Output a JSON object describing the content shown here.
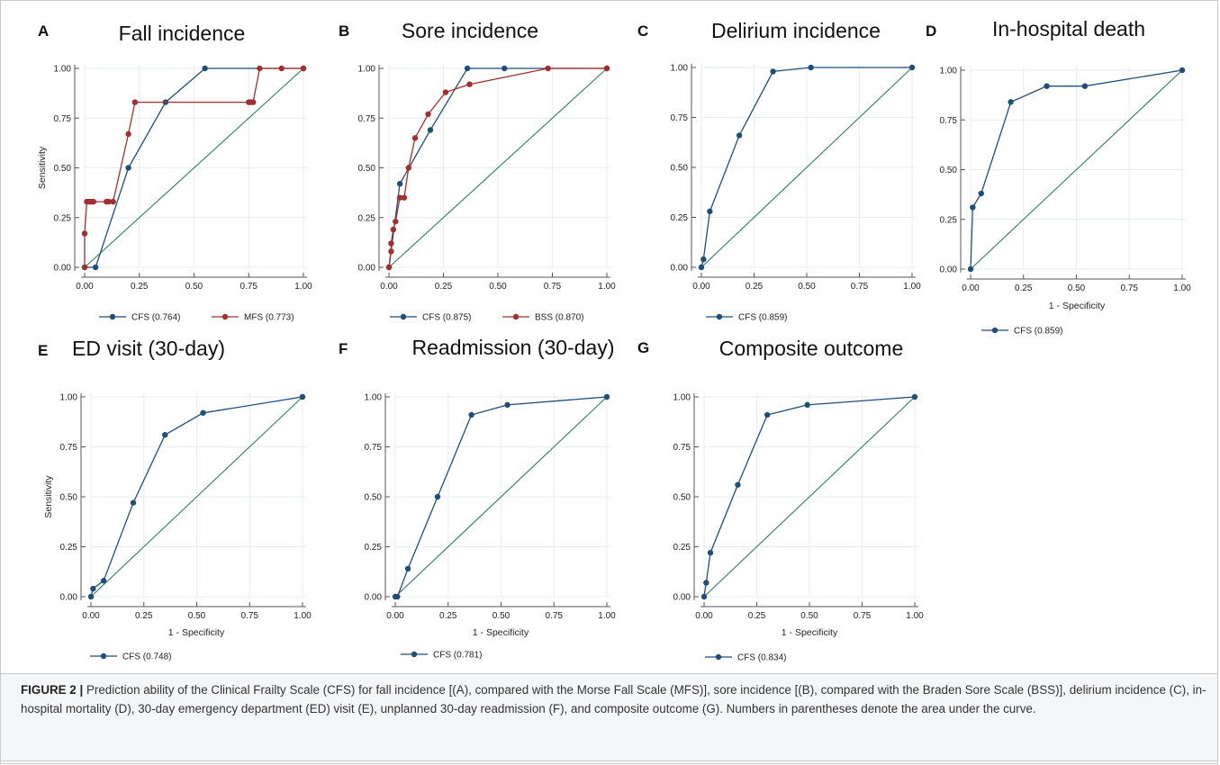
{
  "caption": {
    "heading": "FIGURE 2 |",
    "text": "Prediction ability of the Clinical Frailty Scale (CFS) for fall incidence [(A), compared with the Morse Fall Scale (MFS)], sore incidence [(B), compared with the Braden Sore Scale (BSS)], delirium incidence (C), in-hospital mortality (D), 30-day emergency department (ED) visit (E), unplanned 30-day readmission (F), and composite outcome (G). Numbers in parentheses denote the area under the curve."
  },
  "colors": {
    "cfs": "#1f4e79",
    "comparator": "#a32e2e",
    "reference": "#2e7d5b"
  },
  "chart_data": [
    {
      "type": "line",
      "letter": "A",
      "title": "Fall incidence",
      "xlabel": "",
      "ylabel": "Sensitivity",
      "xlim": [
        0,
        1
      ],
      "ylim": [
        0,
        1
      ],
      "xticks": [
        "0.00",
        "0.25",
        "0.50",
        "0.75",
        "1.00"
      ],
      "yticks": [
        "0.00",
        "0.25",
        "0.50",
        "0.75",
        "1.00"
      ],
      "grid": true,
      "legend_position": "bottom",
      "series": [
        {
          "name": "CFS (0.764)",
          "color": "#1f4e79",
          "x": [
            0,
            0.05,
            0.2,
            0.37,
            0.55,
            1.0
          ],
          "y": [
            0,
            0,
            0.5,
            0.83,
            1.0,
            1.0
          ]
        },
        {
          "name": "MFS (0.773)",
          "color": "#a32e2e",
          "x": [
            0,
            0,
            0.01,
            0.02,
            0.03,
            0.04,
            0.1,
            0.11,
            0.13,
            0.2,
            0.23,
            0.75,
            0.76,
            0.77,
            0.8,
            0.9,
            1.0
          ],
          "y": [
            0,
            0.17,
            0.33,
            0.33,
            0.33,
            0.33,
            0.33,
            0.33,
            0.33,
            0.67,
            0.83,
            0.83,
            0.83,
            0.83,
            1.0,
            1.0,
            1.0
          ]
        }
      ]
    },
    {
      "type": "line",
      "letter": "B",
      "title": "Sore incidence",
      "xlabel": "",
      "ylabel": "",
      "xlim": [
        0,
        1
      ],
      "ylim": [
        0,
        1
      ],
      "xticks": [
        "0.00",
        "0.25",
        "0.50",
        "0.75",
        "1.00"
      ],
      "yticks": [
        "0.00",
        "0.25",
        "0.50",
        "0.75",
        "1.00"
      ],
      "grid": true,
      "legend_position": "bottom",
      "series": [
        {
          "name": "CFS (0.875)",
          "color": "#1f4e79",
          "x": [
            0,
            0.05,
            0.19,
            0.36,
            0.53,
            1.0
          ],
          "y": [
            0,
            0.42,
            0.69,
            1.0,
            1.0,
            1.0
          ]
        },
        {
          "name": "BSS (0.870)",
          "color": "#a32e2e",
          "x": [
            0,
            0.01,
            0.01,
            0.02,
            0.03,
            0.05,
            0.07,
            0.09,
            0.12,
            0.18,
            0.26,
            0.37,
            0.73,
            1.0
          ],
          "y": [
            0,
            0.08,
            0.12,
            0.19,
            0.23,
            0.35,
            0.35,
            0.5,
            0.65,
            0.77,
            0.88,
            0.92,
            1.0,
            1.0
          ]
        }
      ]
    },
    {
      "type": "line",
      "letter": "C",
      "title": "Delirium incidence",
      "xlabel": "",
      "ylabel": "",
      "xlim": [
        0,
        1
      ],
      "ylim": [
        0,
        1
      ],
      "xticks": [
        "0.00",
        "0.25",
        "0.50",
        "0.75",
        "1.00"
      ],
      "yticks": [
        "0.00",
        "0.25",
        "0.50",
        "0.75",
        "1.00"
      ],
      "grid": true,
      "legend_position": "bottom",
      "series": [
        {
          "name": "CFS (0.859)",
          "color": "#1f4e79",
          "x": [
            0,
            0.01,
            0.04,
            0.18,
            0.34,
            0.52,
            1.0
          ],
          "y": [
            0,
            0.04,
            0.28,
            0.66,
            0.98,
            1.0,
            1.0
          ]
        }
      ]
    },
    {
      "type": "line",
      "letter": "D",
      "title": "In-hospital death",
      "xlabel": "1 - Specificity",
      "ylabel": "",
      "xlim": [
        0,
        1
      ],
      "ylim": [
        0,
        1
      ],
      "xticks": [
        "0.00",
        "0.25",
        "0.50",
        "0.75",
        "1.00"
      ],
      "yticks": [
        "0.00",
        "0.25",
        "0.50",
        "0.75",
        "1.00"
      ],
      "grid": true,
      "legend_position": "bottom",
      "series": [
        {
          "name": "CFS (0.859)",
          "color": "#1f4e79",
          "x": [
            0,
            0.01,
            0.05,
            0.19,
            0.36,
            0.54,
            1.0
          ],
          "y": [
            0,
            0.31,
            0.38,
            0.84,
            0.92,
            0.92,
            1.0
          ]
        }
      ]
    },
    {
      "type": "line",
      "letter": "E",
      "title": "ED visit (30-day)",
      "xlabel": "1 - Specificity",
      "ylabel": "Sensitivity",
      "xlim": [
        0,
        1
      ],
      "ylim": [
        0,
        1
      ],
      "xticks": [
        "0.00",
        "0.25",
        "0.50",
        "0.75",
        "1.00"
      ],
      "yticks": [
        "0.00",
        "0.25",
        "0.50",
        "0.75",
        "1.00"
      ],
      "grid": true,
      "legend_position": "bottom",
      "series": [
        {
          "name": "CFS (0.748)",
          "color": "#1f4e79",
          "x": [
            0,
            0.01,
            0.06,
            0.2,
            0.35,
            0.53,
            1.0
          ],
          "y": [
            0,
            0.04,
            0.08,
            0.47,
            0.81,
            0.92,
            1.0
          ]
        }
      ]
    },
    {
      "type": "line",
      "letter": "F",
      "title": "Readmission (30-day)",
      "xlabel": "1 - Specificity",
      "ylabel": "",
      "xlim": [
        0,
        1
      ],
      "ylim": [
        0,
        1
      ],
      "xticks": [
        "0.00",
        "0.25",
        "0.50",
        "0.75",
        "1.00"
      ],
      "yticks": [
        "0.00",
        "0.25",
        "0.50",
        "0.75",
        "1.00"
      ],
      "grid": true,
      "legend_position": "bottom",
      "series": [
        {
          "name": "CFS (0.781)",
          "color": "#1f4e79",
          "x": [
            0,
            0.01,
            0.06,
            0.2,
            0.36,
            0.53,
            1.0
          ],
          "y": [
            0,
            0,
            0.14,
            0.5,
            0.91,
            0.96,
            1.0
          ]
        }
      ]
    },
    {
      "type": "line",
      "letter": "G",
      "title": "Composite outcome",
      "xlabel": "1 - Specificity",
      "ylabel": "",
      "xlim": [
        0,
        1
      ],
      "ylim": [
        0,
        1
      ],
      "xticks": [
        "0.00",
        "0.25",
        "0.50",
        "0.75",
        "1.00"
      ],
      "yticks": [
        "0.00",
        "0.25",
        "0.50",
        "0.75",
        "1.00"
      ],
      "grid": true,
      "legend_position": "bottom",
      "series": [
        {
          "name": "CFS (0.834)",
          "color": "#1f4e79",
          "x": [
            0,
            0.01,
            0.03,
            0.16,
            0.3,
            0.49,
            1.0
          ],
          "y": [
            0,
            0.07,
            0.22,
            0.56,
            0.91,
            0.96,
            1.0
          ]
        }
      ]
    }
  ]
}
